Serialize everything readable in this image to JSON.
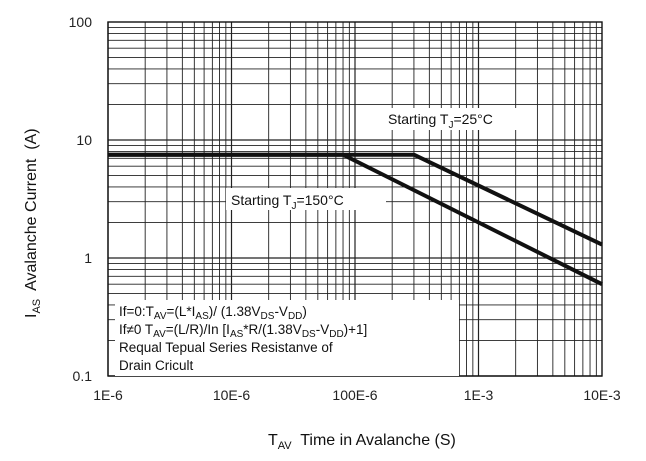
{
  "chart_data": {
    "type": "line",
    "xscale": "log",
    "yscale": "log",
    "xlim": [
      1e-06,
      0.01
    ],
    "ylim": [
      0.1,
      100
    ],
    "grid": true,
    "x_ticks": [
      "1E-6",
      "10E-6",
      "100E-6",
      "1E-3",
      "10E-3"
    ],
    "y_ticks": [
      "0.1",
      "1",
      "10",
      "100"
    ],
    "xlabel": {
      "main": "T",
      "sub": "AV",
      "rest": "  Time in Avalanche (S)"
    },
    "ylabel": {
      "main": "I",
      "sub": "AS",
      "rest": "  Avalanche Current  (A)"
    },
    "series": [
      {
        "name": "Starting TJ=25°C",
        "x": [
          1e-06,
          0.0003,
          0.01
        ],
        "y": [
          7.5,
          7.5,
          1.3
        ]
      },
      {
        "name": "Starting TJ=150°C",
        "x": [
          1e-06,
          8e-05,
          0.01
        ],
        "y": [
          7.5,
          7.5,
          0.6
        ]
      }
    ],
    "annotations": [
      {
        "pre": "Starting T",
        "sub": "J",
        "post": "=25°C"
      },
      {
        "pre": "Starting T",
        "sub": "J",
        "post": "=150°C"
      }
    ],
    "formulas": {
      "line1": [
        {
          "t": "If=0:T"
        },
        {
          "t": "AV",
          "sub": true
        },
        {
          "t": "=(L*I"
        },
        {
          "t": "AS",
          "sub": true
        },
        {
          "t": ")/ (1.38V"
        },
        {
          "t": "DS",
          "sub": true
        },
        {
          "t": "-V"
        },
        {
          "t": "DD",
          "sub": true
        },
        {
          "t": ")"
        }
      ],
      "line2": [
        {
          "t": "If≠0 T"
        },
        {
          "t": "AV",
          "sub": true
        },
        {
          "t": "=(L/R)/In [I"
        },
        {
          "t": "AS",
          "sub": true
        },
        {
          "t": "*R/(1.38V"
        },
        {
          "t": "DS",
          "sub": true
        },
        {
          "t": "-V"
        },
        {
          "t": "DD",
          "sub": true
        },
        {
          "t": ")+1]"
        }
      ],
      "line3": "Requal Tepual Series Resistanve of",
      "line4": "Drain Cricult"
    }
  }
}
